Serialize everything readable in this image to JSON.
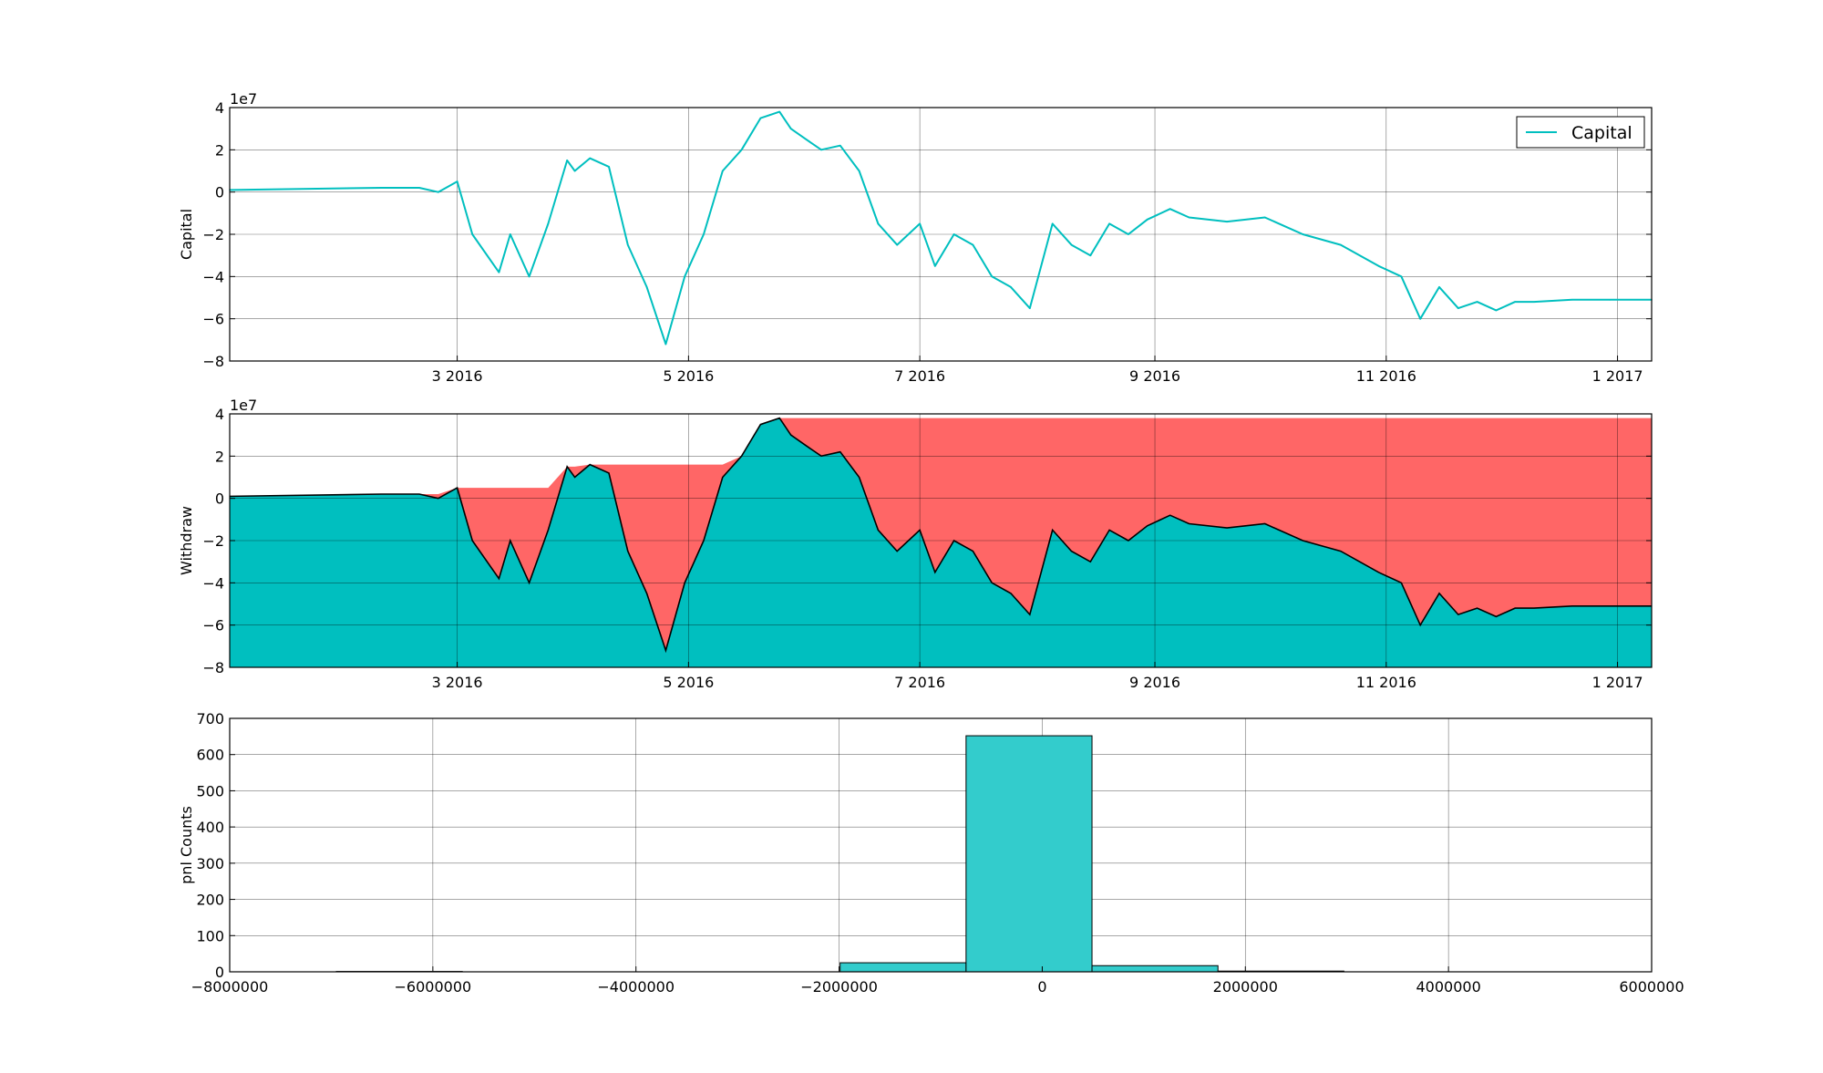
{
  "chart_data": [
    {
      "type": "line",
      "ylabel": "Capital",
      "offset_text": "1e7",
      "ylim": [
        -8,
        4
      ],
      "yticks": [
        "−8",
        "−6",
        "−4",
        "−2",
        "0",
        "2",
        "4"
      ],
      "xlim": [
        "2016-01-01",
        "2017-01-10"
      ],
      "xticks": [
        {
          "date": "2016-03-01",
          "label": "3 2016"
        },
        {
          "date": "2016-05-01",
          "label": "5 2016"
        },
        {
          "date": "2016-07-01",
          "label": "7 2016"
        },
        {
          "date": "2016-09-01",
          "label": "9 2016"
        },
        {
          "date": "2016-11-01",
          "label": "11 2016"
        },
        {
          "date": "2017-01-01",
          "label": "1 2017"
        }
      ],
      "grid": true,
      "legend": {
        "position": "top-right",
        "entries": [
          "Capital"
        ]
      },
      "series": [
        {
          "name": "Capital",
          "color": "#00BFBF",
          "x": [
            "2016-01-01",
            "2016-02-10",
            "2016-02-20",
            "2016-02-25",
            "2016-03-01",
            "2016-03-05",
            "2016-03-12",
            "2016-03-15",
            "2016-03-20",
            "2016-03-25",
            "2016-03-30",
            "2016-04-01",
            "2016-04-05",
            "2016-04-10",
            "2016-04-15",
            "2016-04-20",
            "2016-04-25",
            "2016-04-30",
            "2016-05-05",
            "2016-05-10",
            "2016-05-15",
            "2016-05-20",
            "2016-05-25",
            "2016-05-28",
            "2016-06-01",
            "2016-06-05",
            "2016-06-10",
            "2016-06-15",
            "2016-06-20",
            "2016-06-25",
            "2016-07-01",
            "2016-07-05",
            "2016-07-10",
            "2016-07-15",
            "2016-07-20",
            "2016-07-25",
            "2016-07-30",
            "2016-08-05",
            "2016-08-10",
            "2016-08-15",
            "2016-08-20",
            "2016-08-25",
            "2016-08-30",
            "2016-09-05",
            "2016-09-10",
            "2016-09-20",
            "2016-09-30",
            "2016-10-10",
            "2016-10-20",
            "2016-10-30",
            "2016-11-05",
            "2016-11-10",
            "2016-11-15",
            "2016-11-20",
            "2016-11-25",
            "2016-11-30",
            "2016-12-05",
            "2016-12-10",
            "2016-12-20",
            "2016-12-30",
            "2017-01-10"
          ],
          "y": [
            0.1,
            0.2,
            0.2,
            0.0,
            0.5,
            -2.0,
            -3.8,
            -2.0,
            -4.0,
            -1.5,
            1.5,
            1.0,
            1.6,
            1.2,
            -2.5,
            -4.5,
            -7.2,
            -4.0,
            -2.0,
            1.0,
            2.0,
            3.5,
            3.8,
            3.0,
            2.5,
            2.0,
            2.2,
            1.0,
            -1.5,
            -2.5,
            -1.5,
            -3.5,
            -2.0,
            -2.5,
            -4.0,
            -4.5,
            -5.5,
            -1.5,
            -2.5,
            -3.0,
            -1.5,
            -2.0,
            -1.3,
            -0.8,
            -1.2,
            -1.4,
            -1.2,
            -2.0,
            -2.5,
            -3.5,
            -4.0,
            -6.0,
            -4.5,
            -5.5,
            -5.2,
            -5.6,
            -5.2,
            -5.2,
            -5.1,
            -5.1,
            -5.1
          ]
        }
      ]
    },
    {
      "type": "area",
      "ylabel": "Withdraw",
      "offset_text": "1e7",
      "ylim": [
        -8,
        4
      ],
      "yticks": [
        "−8",
        "−6",
        "−4",
        "−2",
        "0",
        "2",
        "4"
      ],
      "xlim": [
        "2016-01-01",
        "2017-01-10"
      ],
      "xticks": [
        {
          "date": "2016-03-01",
          "label": "3 2016"
        },
        {
          "date": "2016-05-01",
          "label": "5 2016"
        },
        {
          "date": "2016-07-01",
          "label": "7 2016"
        },
        {
          "date": "2016-09-01",
          "label": "9 2016"
        },
        {
          "date": "2016-11-01",
          "label": "11 2016"
        },
        {
          "date": "2017-01-01",
          "label": "1 2017"
        }
      ],
      "grid": true,
      "colors": {
        "capital_fill": "#00BFBF",
        "drawdown_fill": "#FF6666",
        "line": "#000000"
      },
      "series": [
        {
          "role": "capital",
          "x": [
            "2016-01-01",
            "2016-02-10",
            "2016-02-20",
            "2016-02-25",
            "2016-03-01",
            "2016-03-05",
            "2016-03-12",
            "2016-03-15",
            "2016-03-20",
            "2016-03-25",
            "2016-03-30",
            "2016-04-01",
            "2016-04-05",
            "2016-04-10",
            "2016-04-15",
            "2016-04-20",
            "2016-04-25",
            "2016-04-30",
            "2016-05-05",
            "2016-05-10",
            "2016-05-15",
            "2016-05-20",
            "2016-05-25",
            "2016-05-28",
            "2016-06-01",
            "2016-06-05",
            "2016-06-10",
            "2016-06-15",
            "2016-06-20",
            "2016-06-25",
            "2016-07-01",
            "2016-07-05",
            "2016-07-10",
            "2016-07-15",
            "2016-07-20",
            "2016-07-25",
            "2016-07-30",
            "2016-08-05",
            "2016-08-10",
            "2016-08-15",
            "2016-08-20",
            "2016-08-25",
            "2016-08-30",
            "2016-09-05",
            "2016-09-10",
            "2016-09-20",
            "2016-09-30",
            "2016-10-10",
            "2016-10-20",
            "2016-10-30",
            "2016-11-05",
            "2016-11-10",
            "2016-11-15",
            "2016-11-20",
            "2016-11-25",
            "2016-11-30",
            "2016-12-05",
            "2016-12-10",
            "2016-12-20",
            "2016-12-30",
            "2017-01-10"
          ],
          "y": [
            0.1,
            0.2,
            0.2,
            0.0,
            0.5,
            -2.0,
            -3.8,
            -2.0,
            -4.0,
            -1.5,
            1.5,
            1.0,
            1.6,
            1.2,
            -2.5,
            -4.5,
            -7.2,
            -4.0,
            -2.0,
            1.0,
            2.0,
            3.5,
            3.8,
            3.0,
            2.5,
            2.0,
            2.2,
            1.0,
            -1.5,
            -2.5,
            -1.5,
            -3.5,
            -2.0,
            -2.5,
            -4.0,
            -4.5,
            -5.5,
            -1.5,
            -2.5,
            -3.0,
            -1.5,
            -2.0,
            -1.3,
            -0.8,
            -1.2,
            -1.4,
            -1.2,
            -2.0,
            -2.5,
            -3.5,
            -4.0,
            -6.0,
            -4.5,
            -5.5,
            -5.2,
            -5.6,
            -5.2,
            -5.2,
            -5.1,
            -5.1,
            -5.1
          ]
        }
      ]
    },
    {
      "type": "bar",
      "ylabel": "pnl Counts",
      "xlim": [
        -8000000,
        6000000
      ],
      "ylim": [
        0,
        700
      ],
      "xticks": [
        "−8000000",
        "−6000000",
        "−4000000",
        "−2000000",
        "0",
        "2000000",
        "4000000",
        "6000000"
      ],
      "yticks": [
        "0",
        "100",
        "200",
        "300",
        "400",
        "500",
        "600",
        "700"
      ],
      "grid": true,
      "bar_color": "#33CCCC",
      "bins": [
        {
          "start": -6950000,
          "end": -5710000,
          "count": 1
        },
        {
          "start": -5710000,
          "end": -4470000,
          "count": 0
        },
        {
          "start": -4470000,
          "end": -3230000,
          "count": 0
        },
        {
          "start": -3230000,
          "end": -1990000,
          "count": 0
        },
        {
          "start": -1990000,
          "end": -750000,
          "count": 25
        },
        {
          "start": -750000,
          "end": 490000,
          "count": 652
        },
        {
          "start": 490000,
          "end": 1730000,
          "count": 17
        },
        {
          "start": 1730000,
          "end": 2970000,
          "count": 2
        }
      ]
    }
  ]
}
